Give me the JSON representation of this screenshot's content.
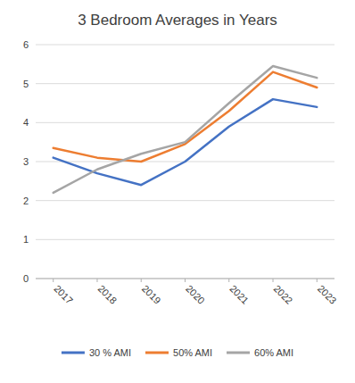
{
  "chart_data": {
    "type": "line",
    "title": "3 Bedroom Averages in Years",
    "x": [
      2017,
      2018,
      2019,
      2020,
      2021,
      2022,
      2023
    ],
    "series": [
      {
        "name": "30 % AMI",
        "color": "#4472C4",
        "values": [
          3.1,
          2.7,
          2.4,
          3.0,
          3.9,
          4.6,
          4.4
        ]
      },
      {
        "name": "50% AMI",
        "color": "#ED7D31",
        "values": [
          3.35,
          3.1,
          3.0,
          3.45,
          4.3,
          5.3,
          4.9
        ]
      },
      {
        "name": "60% AMI",
        "color": "#A5A5A5",
        "values": [
          2.2,
          2.8,
          3.2,
          3.5,
          4.5,
          5.45,
          5.15
        ]
      }
    ],
    "xlim": [
      2016.6,
      2023.4
    ],
    "xticks": [
      2017,
      2018,
      2019,
      2020,
      2021,
      2022,
      2023
    ],
    "ylim": [
      0,
      6
    ],
    "yticks": [
      0,
      1,
      2,
      3,
      4,
      5,
      6
    ],
    "grid": true,
    "legend": "bottom"
  }
}
